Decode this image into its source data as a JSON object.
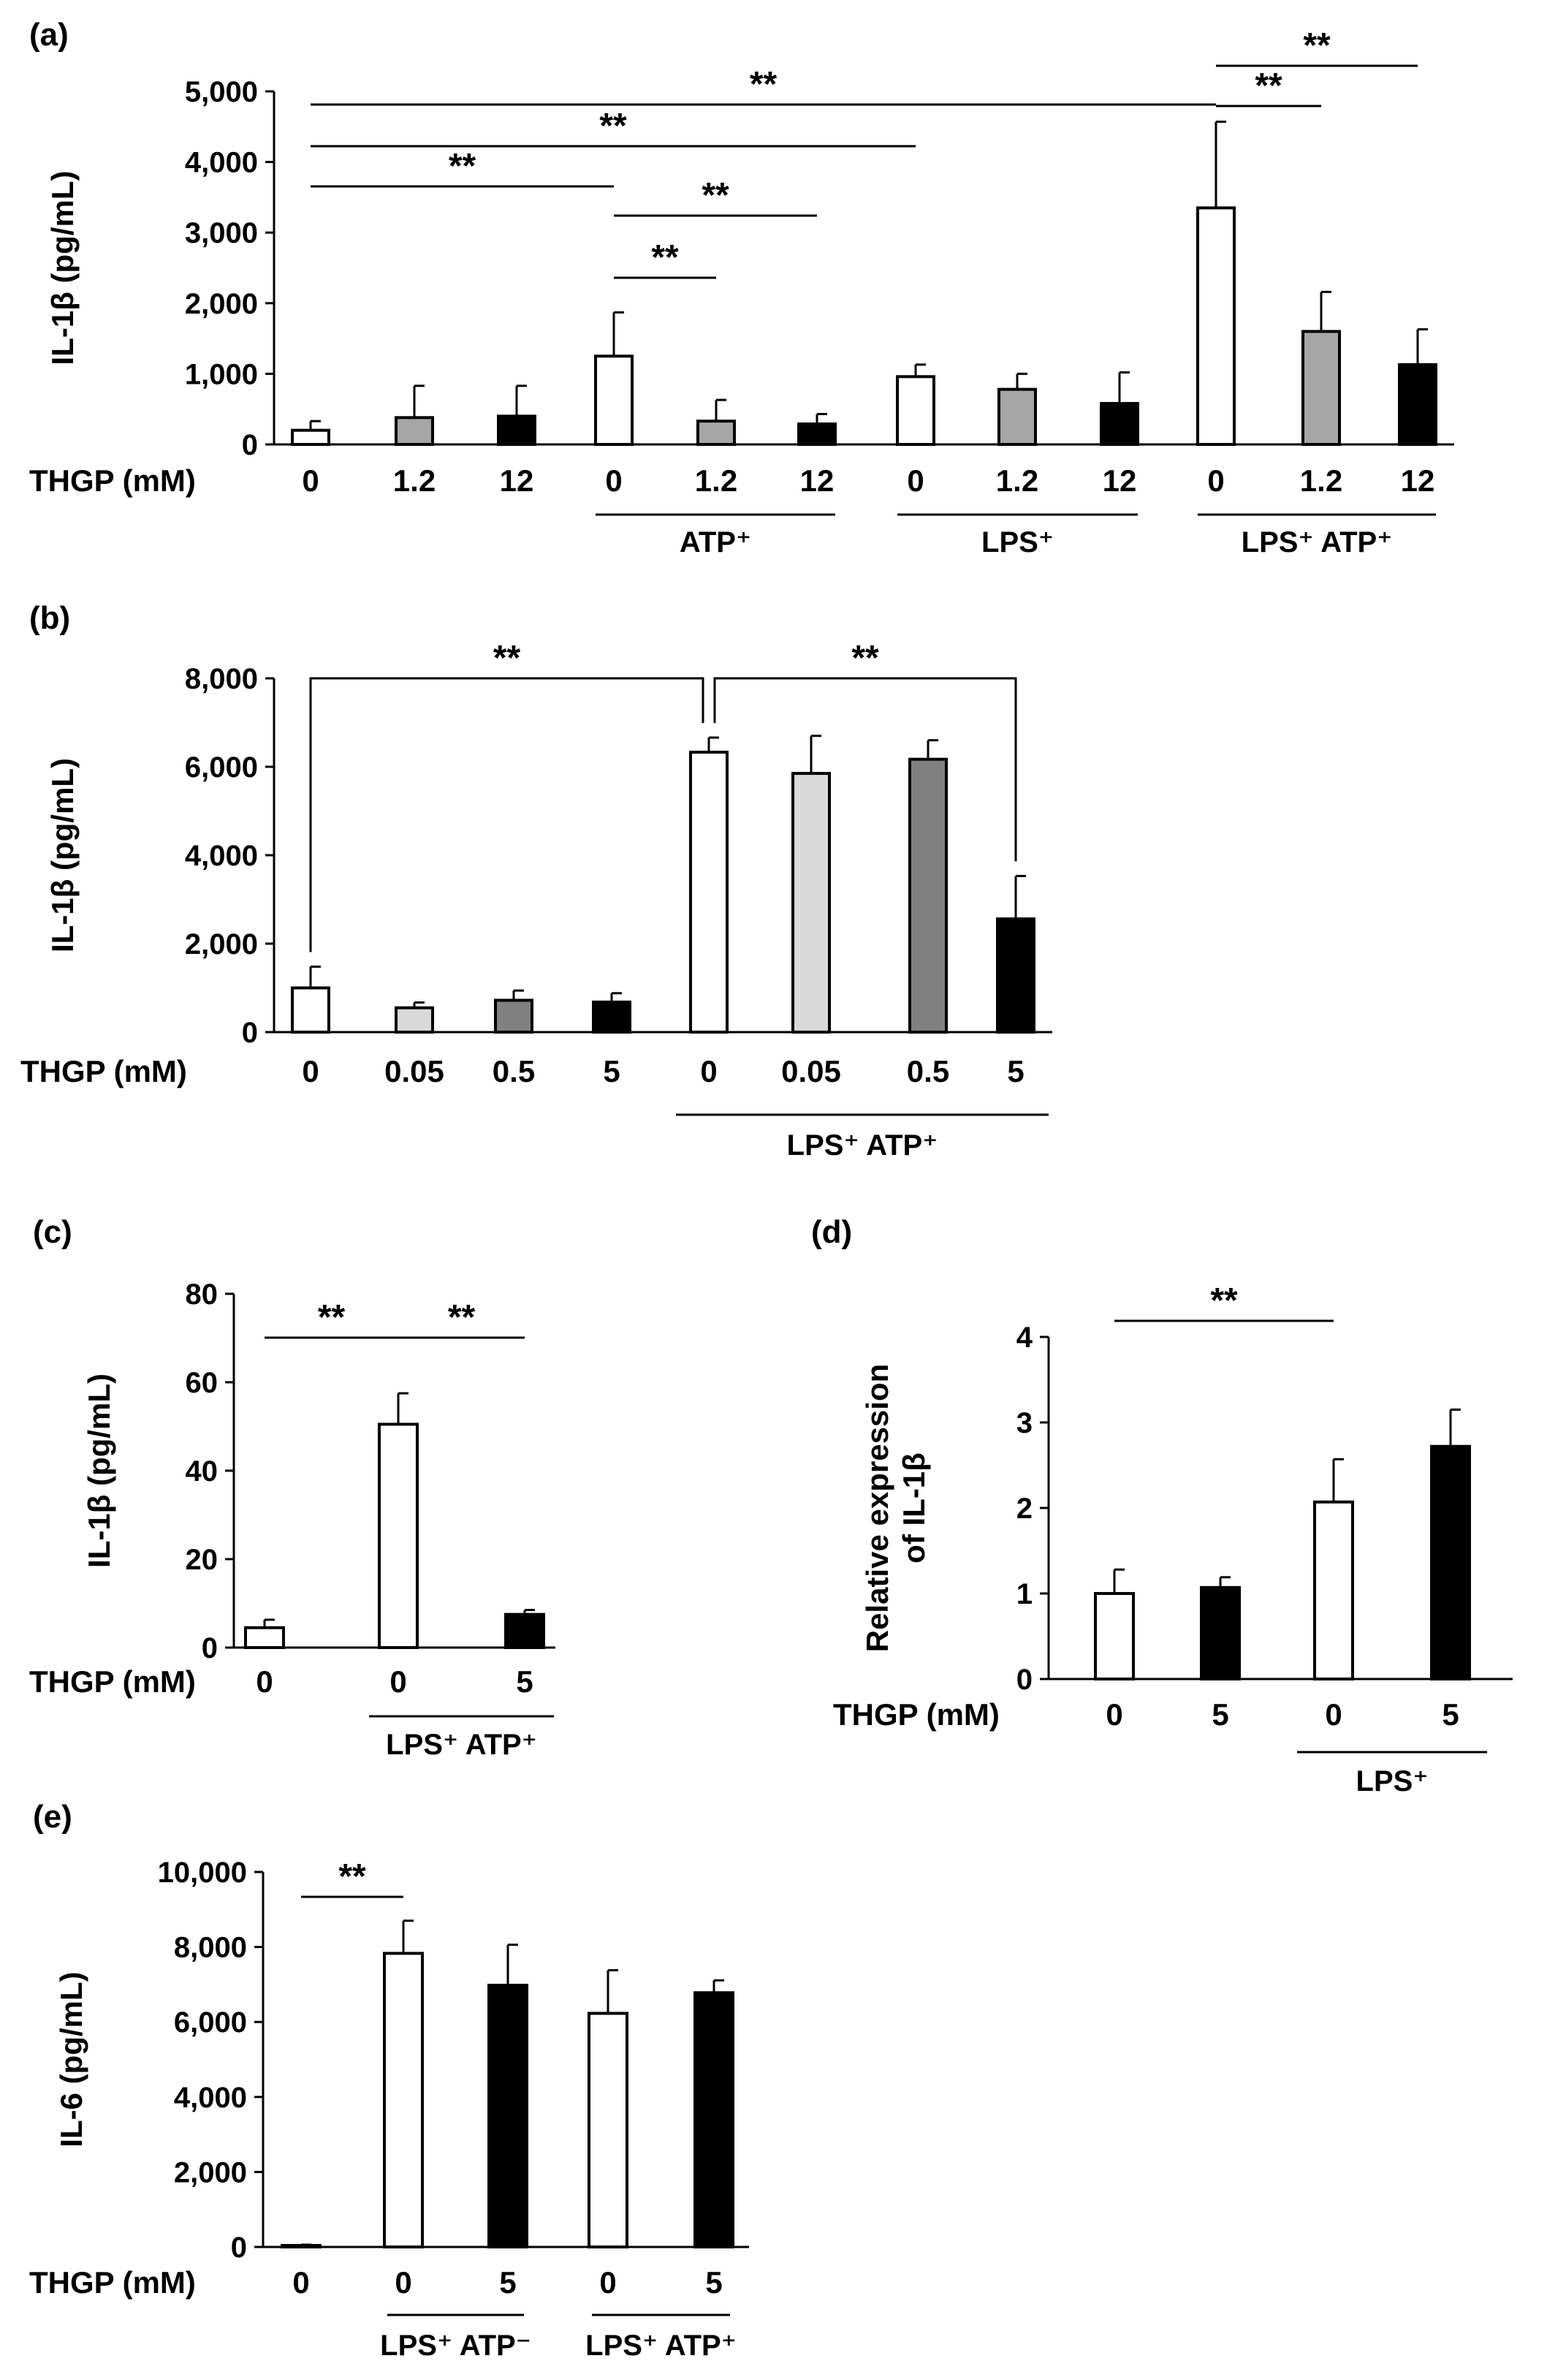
{
  "chart_data": [
    {
      "panel": "(a)",
      "type": "bar",
      "ylabel": "IL-1β (pg/mL)",
      "ylim": [
        0,
        5000
      ],
      "yticks": [
        "0",
        "1,000",
        "2,000",
        "3,000",
        "4,000",
        "5,000"
      ],
      "xheader": "THGP (mM)",
      "categories": [
        "0",
        "1.2",
        "12",
        "0",
        "1.2",
        "12",
        "0",
        "1.2",
        "12",
        "0",
        "1.2",
        "12"
      ],
      "values": [
        200,
        380,
        400,
        1250,
        330,
        290,
        960,
        780,
        580,
        3350,
        1600,
        1130
      ],
      "errors": [
        130,
        450,
        430,
        620,
        300,
        140,
        170,
        220,
        440,
        1220,
        560,
        500
      ],
      "fills": [
        "#ffffff",
        "#a6a6a6",
        "#000000",
        "#ffffff",
        "#a6a6a6",
        "#000000",
        "#ffffff",
        "#a6a6a6",
        "#000000",
        "#ffffff",
        "#a6a6a6",
        "#000000"
      ],
      "groups": [
        {
          "label": "ATP⁺",
          "from": 3,
          "to": 5
        },
        {
          "label": "LPS⁺",
          "from": 6,
          "to": 8
        },
        {
          "label": "LPS⁺ ATP⁺",
          "from": 9,
          "to": 11
        }
      ],
      "significance": [
        {
          "from": 0,
          "to": 9,
          "label": "**"
        },
        {
          "from": 0,
          "to": 6,
          "label": "**"
        },
        {
          "from": 0,
          "to": 3,
          "label": "**"
        },
        {
          "from": 3,
          "to": 5,
          "label": "**"
        },
        {
          "from": 3,
          "to": 4,
          "label": "**"
        },
        {
          "from": 9,
          "to": 11,
          "label": "**"
        },
        {
          "from": 9,
          "to": 10,
          "label": "**"
        }
      ]
    },
    {
      "panel": "(b)",
      "type": "bar",
      "ylabel": "IL-1β (pg/mL)",
      "ylim": [
        0,
        8000
      ],
      "yticks": [
        "0",
        "2,000",
        "4,000",
        "6,000",
        "8,000"
      ],
      "xheader": "THGP (mM)",
      "categories": [
        "0",
        "0.05",
        "0.5",
        "5",
        "0",
        "0.05",
        "0.5",
        "5"
      ],
      "values": [
        1000,
        550,
        720,
        680,
        6330,
        5850,
        6170,
        2560
      ],
      "errors": [
        480,
        120,
        220,
        200,
        330,
        850,
        430,
        970
      ],
      "fills": [
        "#ffffff",
        "#d9d9d9",
        "#808080",
        "#000000",
        "#ffffff",
        "#d9d9d9",
        "#808080",
        "#000000"
      ],
      "groups": [
        {
          "label": "LPS⁺  ATP⁺",
          "from": 4,
          "to": 7
        }
      ],
      "significance": [
        {
          "from": 0,
          "to": 4,
          "label": "**"
        },
        {
          "from": 4,
          "to": 7,
          "label": "**"
        }
      ]
    },
    {
      "panel": "(c)",
      "type": "bar",
      "ylabel": "IL-1β (pg/mL)",
      "ylim": [
        0,
        80
      ],
      "yticks": [
        "0",
        "20",
        "40",
        "60",
        "80"
      ],
      "xheader": "THGP (mM)",
      "categories": [
        "0",
        "0",
        "5"
      ],
      "values": [
        4.5,
        50.5,
        7.5
      ],
      "errors": [
        1.8,
        7.0,
        1.0
      ],
      "fills": [
        "#ffffff",
        "#ffffff",
        "#000000"
      ],
      "groups": [
        {
          "label": "LPS⁺ ATP⁺",
          "from": 1,
          "to": 2
        }
      ],
      "significance": [
        {
          "from": 0,
          "to": 1,
          "label": "**"
        },
        {
          "from": 1,
          "to": 2,
          "label": "**"
        }
      ]
    },
    {
      "panel": "(d)",
      "type": "bar",
      "ylabel": "Relative expression of IL-1β",
      "ylim": [
        0,
        4
      ],
      "yticks": [
        "0",
        "1",
        "2",
        "3",
        "4"
      ],
      "xheader": "THGP (mM)",
      "categories": [
        "0",
        "5",
        "0",
        "5"
      ],
      "values": [
        1.0,
        1.07,
        2.07,
        2.72
      ],
      "errors": [
        0.28,
        0.12,
        0.5,
        0.43
      ],
      "fills": [
        "#ffffff",
        "#000000",
        "#ffffff",
        "#000000"
      ],
      "groups": [
        {
          "label": "LPS⁺",
          "from": 2,
          "to": 3
        }
      ],
      "significance": [
        {
          "from": 0,
          "to": 2,
          "label": "**"
        }
      ]
    },
    {
      "panel": "(e)",
      "type": "bar",
      "ylabel": "IL-6 (pg/mL)",
      "ylim": [
        0,
        10000
      ],
      "yticks": [
        "0",
        "2,000",
        "4,000",
        "6,000",
        "8,000",
        "10,000"
      ],
      "xheader": "THGP (mM)",
      "categories": [
        "0",
        "0",
        "5",
        "0",
        "5"
      ],
      "values": [
        40,
        7830,
        6980,
        6230,
        6780
      ],
      "errors": [
        20,
        870,
        1080,
        1150,
        330
      ],
      "fills": [
        "#ffffff",
        "#ffffff",
        "#000000",
        "#ffffff",
        "#000000"
      ],
      "groups": [
        {
          "label": "LPS⁺ ATP⁻",
          "from": 1,
          "to": 2
        },
        {
          "label": "LPS⁺ ATP⁺",
          "from": 3,
          "to": 4
        }
      ],
      "significance": [
        {
          "from": 0,
          "to": 1,
          "label": "**"
        }
      ]
    }
  ]
}
